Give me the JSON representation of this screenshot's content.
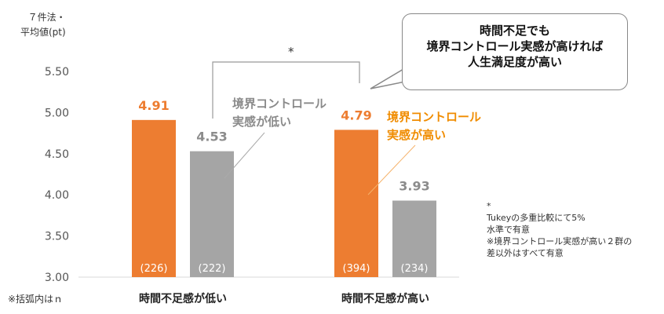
{
  "y_axis_label_lines": [
    "７件法・",
    "平均値(pt)"
  ],
  "footnote_left": "※括弧内はｎ",
  "callout_lines": [
    "時間不足でも",
    "境界コントロール実感が高ければ",
    "人生満足度が高い"
  ],
  "significance_mark": "*",
  "label_low_control": [
    "境界コントロール",
    "実感が低い"
  ],
  "label_high_control": [
    "境界コントロール",
    "実感が高い"
  ],
  "note_lines": [
    "*",
    "Tukeyの多重比較にて5%",
    "水準で有意",
    "※境界コントロール実感が高い２群の",
    "差以外はすべて有意"
  ],
  "colors": {
    "orange": "#ed7d31",
    "gray": "#a5a5a5",
    "orange_value": "#ed7d31",
    "gray_value": "#8c8c8c",
    "label_orange": "#f08c00"
  },
  "chart_data": {
    "type": "bar",
    "categories": [
      "時間不足感が低い",
      "時間不足感が高い"
    ],
    "series": [
      {
        "values": [
          4.91,
          4.79
        ],
        "n_labels": [
          "(226)",
          "(394)"
        ]
      },
      {
        "values": [
          4.53,
          3.93
        ],
        "n_labels": [
          "(222)",
          "(234)"
        ]
      }
    ],
    "value_labels": [
      [
        "4.91",
        "4.79"
      ],
      [
        "4.53",
        "3.93"
      ]
    ],
    "ylim": [
      3.0,
      5.5
    ],
    "yticks": [
      "3.00",
      "3.50",
      "4.00",
      "4.50",
      "5.00",
      "5.50"
    ],
    "grid": false
  }
}
